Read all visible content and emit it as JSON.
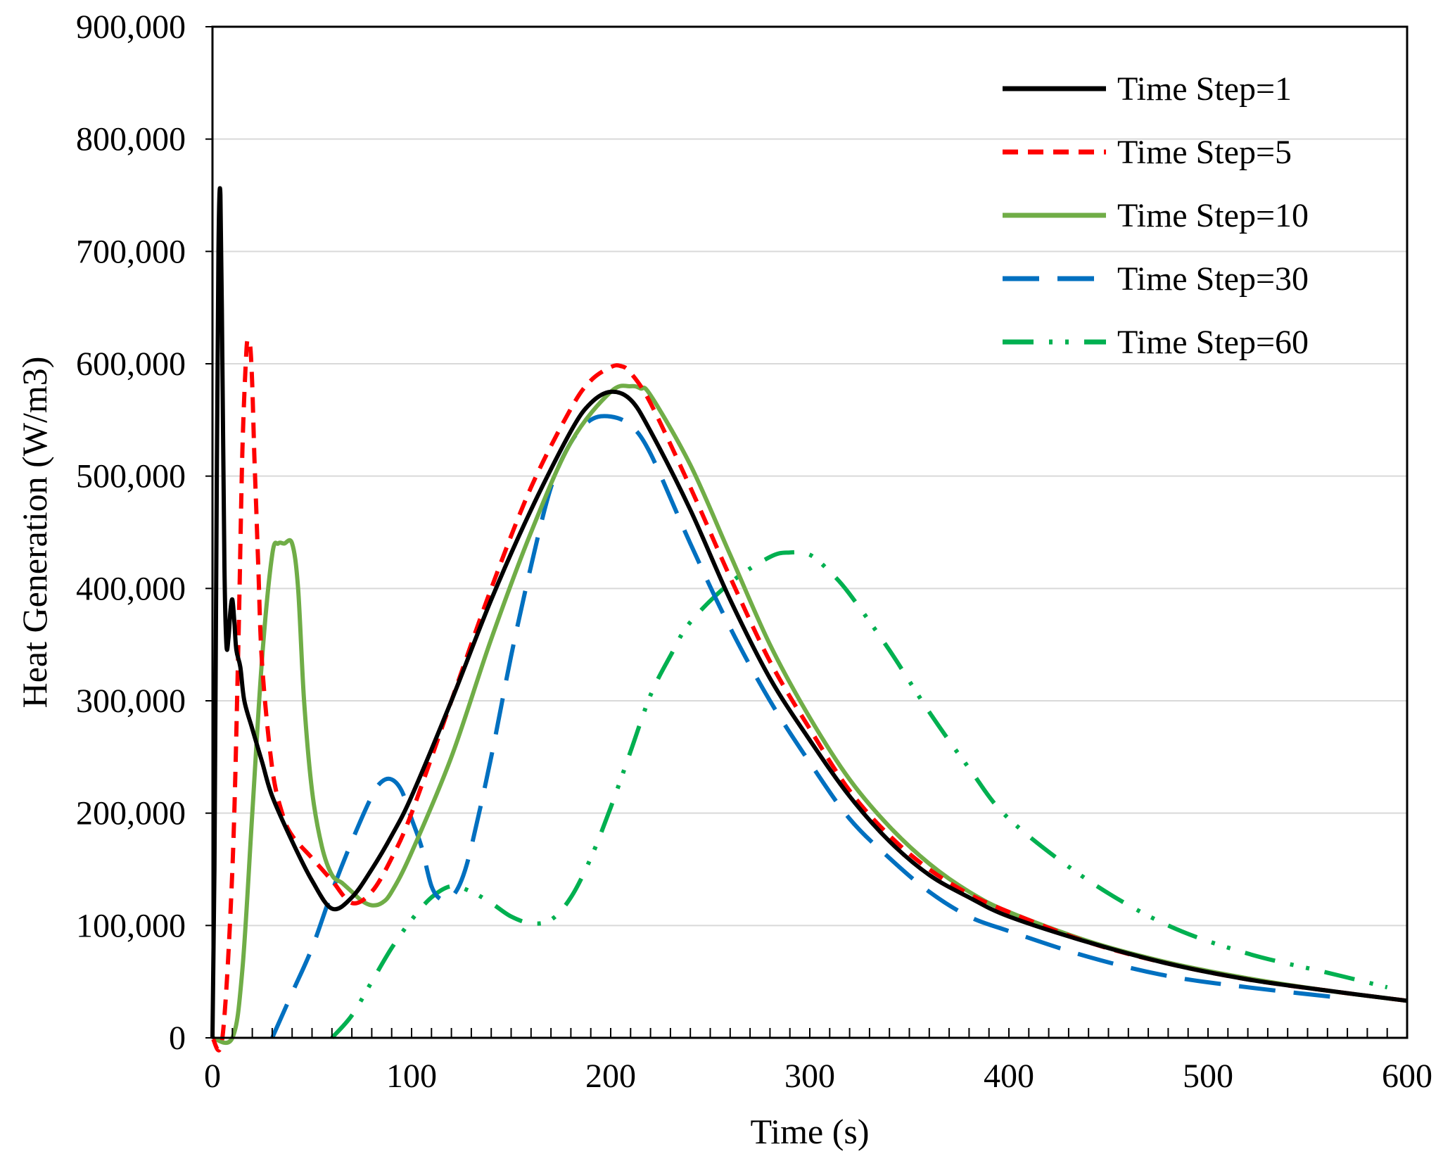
{
  "chart_data": {
    "type": "line",
    "title": "",
    "xlabel": "Time (s)",
    "ylabel": "Heat Generation (W/m3)",
    "xlim": [
      0,
      600
    ],
    "ylim": [
      0,
      900000
    ],
    "xticks": [
      0,
      100,
      200,
      300,
      400,
      500,
      600
    ],
    "xtick_labels": [
      "0",
      "100",
      "200",
      "300",
      "400",
      "500",
      "600"
    ],
    "yticks": [
      0,
      100000,
      200000,
      300000,
      400000,
      500000,
      600000,
      700000,
      800000,
      900000
    ],
    "ytick_labels": [
      "0",
      "100,000",
      "200,000",
      "300,000",
      "400,000",
      "500,000",
      "600,000",
      "700,000",
      "800,000",
      "900,000"
    ],
    "x_minor_step": 10,
    "grid": "horizontal",
    "legend_position": "top-right",
    "series": [
      {
        "name": "Time Step=1",
        "color": "#000000",
        "dash": "solid",
        "x": [
          0,
          1,
          2,
          3,
          4,
          5,
          6,
          7,
          8,
          9,
          10,
          11,
          12,
          14,
          16,
          20,
          25,
          30,
          40,
          50,
          60,
          70,
          80,
          90,
          100,
          120,
          140,
          160,
          180,
          190,
          200,
          210,
          220,
          240,
          260,
          280,
          300,
          320,
          340,
          360,
          380,
          400,
          440,
          480,
          520,
          560,
          600
        ],
        "y": [
          0,
          150000,
          450000,
          700000,
          750000,
          600000,
          420000,
          350000,
          355000,
          380000,
          390000,
          370000,
          345000,
          330000,
          300000,
          275000,
          245000,
          215000,
          175000,
          140000,
          115000,
          125000,
          150000,
          180000,
          215000,
          300000,
          390000,
          470000,
          540000,
          565000,
          575000,
          568000,
          540000,
          470000,
          390000,
          320000,
          265000,
          215000,
          175000,
          145000,
          125000,
          108000,
          85000,
          66000,
          52000,
          42000,
          33000
        ]
      },
      {
        "name": "Time Step=5",
        "color": "#ff0000",
        "dash": "short-dash",
        "x": [
          0,
          5,
          10,
          13,
          15,
          17,
          18,
          19,
          20,
          21,
          22,
          23,
          25,
          30,
          35,
          40,
          50,
          60,
          70,
          80,
          90,
          100,
          120,
          140,
          160,
          180,
          190,
          200,
          205,
          210,
          220,
          240,
          260,
          280,
          300,
          320,
          340,
          360,
          380,
          400,
          440,
          480,
          520,
          560,
          600
        ],
        "y": [
          0,
          0,
          150000,
          350000,
          520000,
          610000,
          620000,
          615000,
          580000,
          520000,
          470000,
          420000,
          330000,
          240000,
          200000,
          180000,
          160000,
          140000,
          120000,
          130000,
          160000,
          200000,
          300000,
          400000,
          490000,
          560000,
          585000,
          597000,
          598000,
          592000,
          565000,
          490000,
          410000,
          335000,
          275000,
          220000,
          180000,
          150000,
          128000,
          112000,
          85000,
          66000,
          52000,
          42000,
          33000
        ]
      },
      {
        "name": "Time Step=10",
        "color": "#70ad47",
        "dash": "solid",
        "x": [
          0,
          10,
          15,
          20,
          25,
          30,
          33,
          36,
          40,
          43,
          46,
          50,
          55,
          60,
          65,
          70,
          75,
          80,
          85,
          90,
          100,
          120,
          140,
          160,
          180,
          200,
          210,
          215,
          220,
          240,
          260,
          280,
          300,
          320,
          340,
          360,
          380,
          400,
          440,
          480,
          520,
          560,
          600
        ],
        "y": [
          0,
          0,
          60000,
          200000,
          340000,
          430000,
          440000,
          440000,
          440000,
          400000,
          300000,
          220000,
          170000,
          145000,
          138000,
          130000,
          122000,
          118000,
          120000,
          130000,
          165000,
          250000,
          355000,
          450000,
          530000,
          575000,
          580000,
          578000,
          572000,
          510000,
          430000,
          350000,
          285000,
          230000,
          188000,
          155000,
          130000,
          112000,
          86000,
          67000,
          53000,
          42000,
          33000
        ]
      },
      {
        "name": "Time Step=30",
        "color": "#0070c0",
        "dash": "long-dash",
        "x": [
          30,
          40,
          50,
          60,
          70,
          80,
          85,
          90,
          95,
          100,
          105,
          110,
          115,
          120,
          125,
          130,
          140,
          150,
          160,
          170,
          180,
          190,
          200,
          210,
          220,
          240,
          260,
          280,
          300,
          320,
          340,
          360,
          380,
          400,
          440,
          480,
          520,
          570
        ],
        "y": [
          0,
          40000,
          80000,
          130000,
          175000,
          215000,
          228000,
          230000,
          220000,
          195000,
          170000,
          135000,
          123000,
          125000,
          140000,
          170000,
          250000,
          340000,
          420000,
          490000,
          530000,
          550000,
          553000,
          545000,
          520000,
          440000,
          365000,
          300000,
          245000,
          195000,
          160000,
          130000,
          108000,
          95000,
          72000,
          55000,
          45000,
          35000
        ]
      },
      {
        "name": "Time Step=60",
        "color": "#00b050",
        "dash": "dash-dot-dot",
        "x": [
          60,
          70,
          80,
          90,
          100,
          110,
          120,
          130,
          140,
          150,
          160,
          170,
          180,
          190,
          200,
          210,
          220,
          230,
          240,
          260,
          280,
          290,
          300,
          310,
          320,
          340,
          360,
          380,
          400,
          440,
          480,
          520,
          560,
          590
        ],
        "y": [
          0,
          20000,
          50000,
          80000,
          105000,
          125000,
          135000,
          130000,
          120000,
          108000,
          102000,
          105000,
          125000,
          160000,
          205000,
          255000,
          305000,
          340000,
          370000,
          405000,
          428000,
          432000,
          430000,
          415000,
          395000,
          345000,
          290000,
          240000,
          195000,
          140000,
          100000,
          75000,
          58000,
          45000
        ]
      }
    ]
  }
}
